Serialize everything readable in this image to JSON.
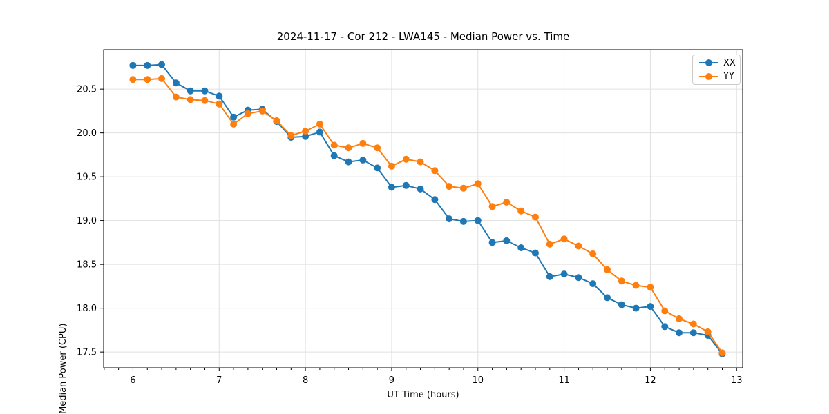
{
  "chart_data": {
    "type": "line",
    "title": "2024-11-17 - Cor 212 - LWA145 - Median Power vs. Time",
    "xlabel": "UT Time (hours)",
    "ylabel": "Median Power (CPU)",
    "xlim": [
      5.66,
      13.07
    ],
    "ylim": [
      17.32,
      20.95
    ],
    "xticks": [
      6,
      7,
      8,
      9,
      10,
      11,
      12,
      13
    ],
    "yticks": [
      17.5,
      18.0,
      18.5,
      19.0,
      19.5,
      20.0,
      20.5
    ],
    "x_minor_step": 0.16667,
    "grid": "major",
    "grid_color": "#e0e0e0",
    "axis_color": "#000000",
    "legend_position": "upper right",
    "x": [
      6.0,
      6.167,
      6.333,
      6.5,
      6.667,
      6.833,
      7.0,
      7.167,
      7.333,
      7.5,
      7.667,
      7.833,
      8.0,
      8.167,
      8.333,
      8.5,
      8.667,
      8.833,
      9.0,
      9.167,
      9.333,
      9.5,
      9.667,
      9.833,
      10.0,
      10.167,
      10.333,
      10.5,
      10.667,
      10.833,
      11.0,
      11.167,
      11.333,
      11.5,
      11.667,
      11.833,
      12.0,
      12.167,
      12.333,
      12.5,
      12.667,
      12.833
    ],
    "series": [
      {
        "name": "XX",
        "color": "#1f77b4",
        "values": [
          20.77,
          20.77,
          20.78,
          20.57,
          20.48,
          20.48,
          20.42,
          20.18,
          20.26,
          20.27,
          20.13,
          19.95,
          19.96,
          20.01,
          19.74,
          19.67,
          19.69,
          19.6,
          19.38,
          19.4,
          19.36,
          19.24,
          19.02,
          18.99,
          19.0,
          18.75,
          18.77,
          18.69,
          18.63,
          18.36,
          18.39,
          18.35,
          18.28,
          18.12,
          18.04,
          18.0,
          18.02,
          17.79,
          17.72,
          17.72,
          17.69,
          17.48
        ]
      },
      {
        "name": "YY",
        "color": "#ff7f0e",
        "values": [
          20.61,
          20.61,
          20.62,
          20.41,
          20.38,
          20.37,
          20.33,
          20.1,
          20.22,
          20.25,
          20.14,
          19.97,
          20.02,
          20.1,
          19.86,
          19.83,
          19.88,
          19.83,
          19.62,
          19.7,
          19.67,
          19.57,
          19.39,
          19.37,
          19.42,
          19.16,
          19.21,
          19.11,
          19.04,
          18.73,
          18.79,
          18.71,
          18.62,
          18.44,
          18.31,
          18.26,
          18.24,
          17.97,
          17.88,
          17.82,
          17.73,
          17.49
        ]
      }
    ]
  }
}
